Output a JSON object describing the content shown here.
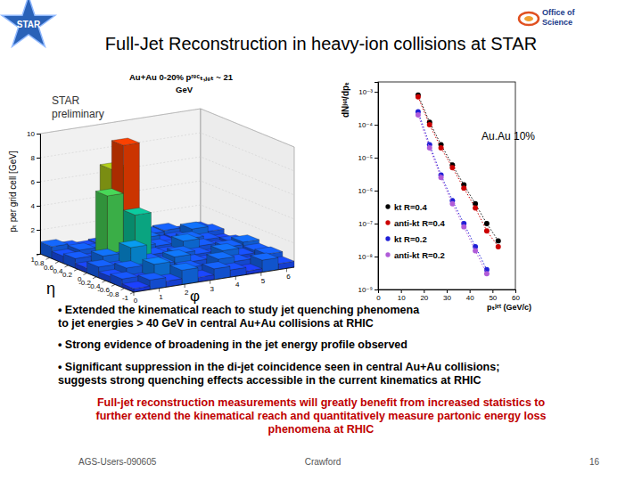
{
  "header": {
    "title": "Full-Jet Reconstruction in heavy-ion collisions at STAR",
    "logo_left": "STAR",
    "logo_right": [
      "Office of",
      "Science"
    ]
  },
  "lego_plot": {
    "title": [
      "Au+Au 0-20% pʳᵉᶜₜ,ⱼₑₜ ~ 21",
      "GeV"
    ],
    "preliminary": [
      "STAR",
      "preliminary"
    ],
    "zlabel": "pₜ per grid cell [GeV]",
    "eta_label": "η",
    "phi_label": "φ",
    "eta_lim": [
      -1,
      1
    ],
    "eta_ticks": [
      1,
      0.8,
      0.6,
      0.4,
      0.2,
      0,
      -0.2,
      -0.4,
      -0.6,
      -0.8,
      -1
    ],
    "phi_lim": [
      0,
      6.3
    ],
    "phi_ticks": [
      0,
      1,
      2,
      3,
      4,
      5,
      6
    ],
    "zlim": [
      0,
      10
    ],
    "zticks": [
      2,
      4,
      6,
      8,
      10
    ],
    "eta_edges": [
      -1,
      -0.75,
      -0.5,
      -0.25,
      0,
      0.25,
      0.5,
      0.75,
      1
    ],
    "phi_edges": [
      0,
      0.63,
      1.26,
      1.89,
      2.52,
      3.15,
      3.78,
      4.41,
      5.04,
      5.67,
      6.3
    ],
    "cells": [
      [
        0.3,
        0.8,
        0.5,
        1.2,
        0.4,
        0.9,
        0.6,
        0.3,
        1.0,
        0.5
      ],
      [
        0.7,
        0.4,
        1.5,
        0.6,
        0.8,
        0.3,
        1.1,
        0.7,
        0.4,
        0.9
      ],
      [
        0.5,
        1.0,
        0.6,
        0.9,
        1.3,
        0.7,
        0.5,
        1.2,
        0.6,
        0.8
      ],
      [
        0.9,
        0.6,
        2.1,
        0.8,
        0.5,
        1.0,
        0.7,
        0.4,
        0.9,
        1.1
      ],
      [
        0.4,
        1.2,
        0.8,
        4.2,
        0.7,
        0.6,
        1.4,
        0.8,
        0.5,
        0.7
      ],
      [
        0.8,
        0.5,
        5.6,
        9.6,
        1.0,
        0.8,
        0.6,
        1.0,
        0.7,
        0.4
      ],
      [
        0.6,
        0.9,
        0.7,
        7.2,
        0.9,
        1.1,
        0.5,
        0.6,
        1.2,
        0.8
      ],
      [
        1.0,
        0.7,
        0.5,
        0.6,
        1.4,
        0.4,
        0.8,
        0.9,
        0.5,
        0.6
      ]
    ]
  },
  "chart_data": {
    "type": "line",
    "xlabel": "pₜʲᵉᵗ (GeV/c)",
    "ylabel": "dNʲᵉᵗ/dpₜ",
    "log": "y",
    "grid": false,
    "legend": "lower left",
    "annotations": [
      "Au.Au 10%"
    ],
    "x": [
      17.5,
      22.5,
      27.5,
      32.5,
      37.5,
      42.5,
      47.5,
      52.5
    ],
    "xlim": [
      0,
      60
    ],
    "xticks": [
      0,
      10,
      20,
      30,
      40,
      50,
      60
    ],
    "ylim": [
      1e-09,
      0.002
    ],
    "yticks": [
      {
        "value": 1e-09,
        "label": "10⁻⁹"
      },
      {
        "value": 1e-08,
        "label": "10⁻⁸"
      },
      {
        "value": 1e-07,
        "label": "10⁻⁷"
      },
      {
        "value": 1e-06,
        "label": "10⁻⁶"
      },
      {
        "value": 1e-05,
        "label": "10⁻⁵"
      },
      {
        "value": 0.0001,
        "label": "10⁻⁴"
      },
      {
        "value": 0.001,
        "label": "10⁻³"
      }
    ],
    "series": [
      {
        "name": "kt R=0.4",
        "color": "#000000",
        "marker": "circle",
        "line_style": "dotted",
        "values": [
          0.0008,
          0.00012,
          2.5e-05,
          6e-06,
          1.5e-06,
          4e-07,
          1e-07,
          3e-08
        ]
      },
      {
        "name": "anti-kt R=0.4",
        "color": "#cc0000",
        "marker": "circle",
        "line_style": "dotted",
        "values": [
          0.0007,
          0.0001,
          2e-05,
          5e-06,
          1.2e-06,
          3e-07,
          6e-08,
          2e-08
        ]
      },
      {
        "name": "kt R=0.2",
        "color": "#1f1fd6",
        "marker": "circle",
        "line_style": "dotted",
        "values": [
          0.00025,
          2.5e-05,
          3e-06,
          5e-07,
          1e-07,
          2e-08,
          4e-09,
          null
        ]
      },
      {
        "name": "anti-kt R=0.2",
        "color": "#b05cd8",
        "marker": "circle",
        "line_style": "dotted",
        "values": [
          0.0002,
          2e-05,
          2.5e-06,
          4e-07,
          8e-08,
          1.5e-08,
          3e-09,
          null
        ]
      }
    ]
  },
  "bullets": [
    [
      "• Extended the kinematical reach to study jet quenching phenomena",
      "to jet energies > 40 GeV in central Au+Au collisions at RHIC"
    ],
    [
      "• Strong evidence of broadening in the jet energy profile observed"
    ],
    [
      "• Significant suppression in the di-jet coincidence seen in central Au+Au collisions;",
      "suggests strong quenching effects accessible in the current kinematics at RHIC"
    ]
  ],
  "summary": [
    "Full-jet reconstruction measurements will greatly benefit from increased statistics to",
    "further extend the kinematical reach and quantitatively measure partonic energy loss",
    "phenomena at RHIC"
  ],
  "footer": {
    "left": "AGS-Users-090605",
    "center": "Crawford",
    "right": "16"
  }
}
